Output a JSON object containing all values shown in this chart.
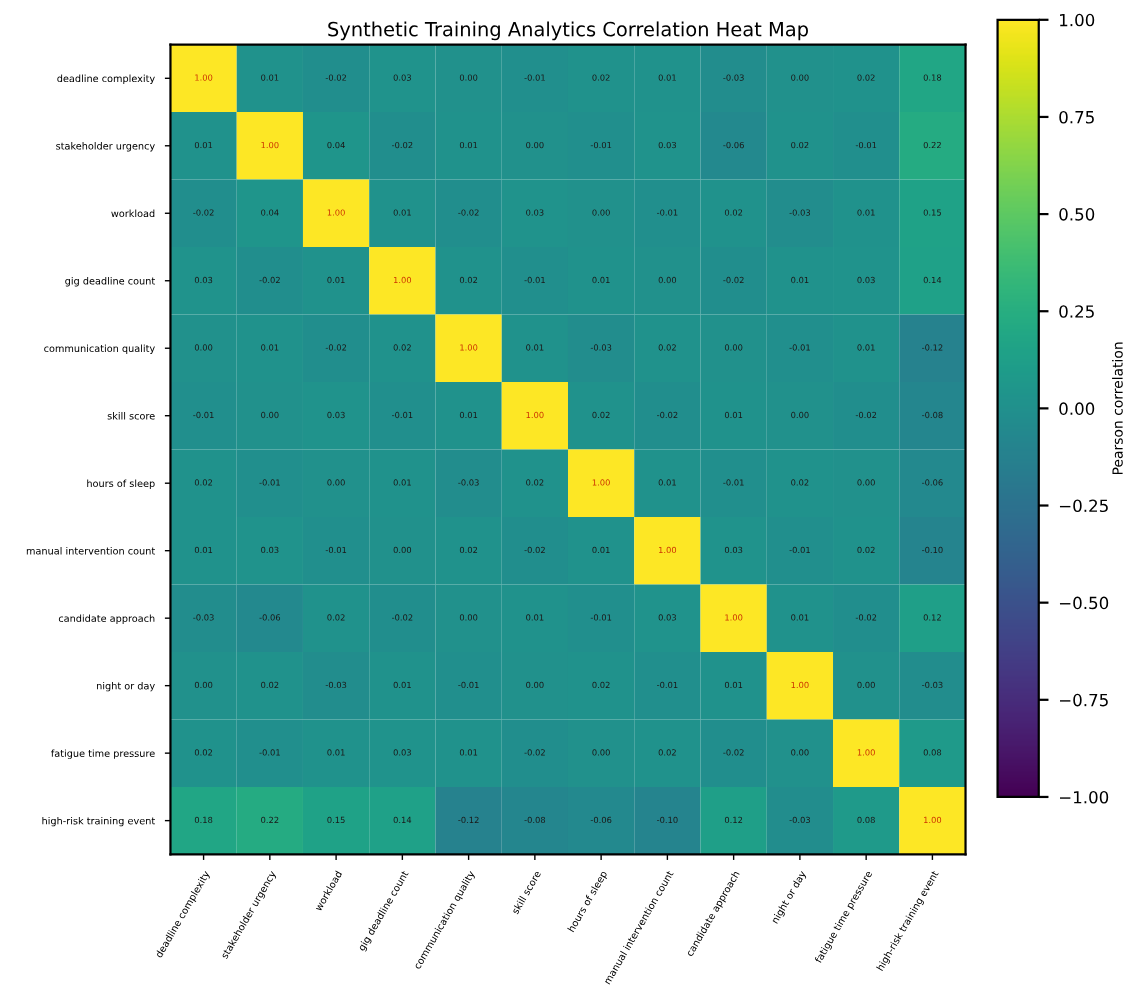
{
  "chart_data": {
    "type": "heatmap",
    "title": "Synthetic Training Analytics Correlation Heat Map",
    "clabel": "Pearson correlation",
    "categories": [
      "deadline complexity",
      "stakeholder urgency",
      "workload",
      "gig deadline count",
      "communication quality",
      "skill score",
      "hours of sleep",
      "manual intervention count",
      "candidate approach",
      "night or day",
      "fatigue time pressure",
      "high-risk training event"
    ],
    "y_categories": [
      "deadline complexity",
      "stakeholder urgency",
      "workload",
      "gig deadline count",
      "communication quality",
      "skill score",
      "hours of sleep",
      "manual intervention count",
      "candidate approach",
      "night or day",
      "fatigue time pressure",
      "high-risk training event"
    ],
    "cells": [
      [
        1.0,
        0.01,
        -0.02,
        0.03,
        0.0,
        -0.01,
        0.02,
        0.01,
        -0.03,
        0.0,
        0.02,
        0.18
      ],
      [
        0.01,
        1.0,
        0.04,
        -0.02,
        0.01,
        0.0,
        -0.01,
        0.03,
        -0.06,
        0.02,
        -0.01,
        0.22
      ],
      [
        -0.02,
        0.04,
        1.0,
        0.01,
        -0.02,
        0.03,
        0.0,
        -0.01,
        0.02,
        -0.03,
        0.01,
        0.15
      ],
      [
        0.03,
        -0.02,
        0.01,
        1.0,
        0.02,
        -0.01,
        0.01,
        0.0,
        -0.02,
        0.01,
        0.03,
        0.14
      ],
      [
        0.0,
        0.01,
        -0.02,
        0.02,
        1.0,
        0.01,
        -0.03,
        0.02,
        0.0,
        -0.01,
        0.01,
        -0.12
      ],
      [
        -0.01,
        0.0,
        0.03,
        -0.01,
        0.01,
        1.0,
        0.02,
        -0.02,
        0.01,
        0.0,
        -0.02,
        -0.08
      ],
      [
        0.02,
        -0.01,
        0.0,
        0.01,
        -0.03,
        0.02,
        1.0,
        0.01,
        -0.01,
        0.02,
        0.0,
        -0.06
      ],
      [
        0.01,
        0.03,
        -0.01,
        0.0,
        0.02,
        -0.02,
        0.01,
        1.0,
        0.03,
        -0.01,
        0.02,
        -0.1
      ],
      [
        -0.03,
        -0.06,
        0.02,
        -0.02,
        0.0,
        0.01,
        -0.01,
        0.03,
        1.0,
        0.01,
        -0.02,
        0.12
      ],
      [
        0.0,
        0.02,
        -0.03,
        0.01,
        -0.01,
        0.0,
        0.02,
        -0.01,
        0.01,
        1.0,
        0.0,
        -0.03
      ],
      [
        0.02,
        -0.01,
        0.01,
        0.03,
        0.01,
        -0.02,
        0.0,
        0.02,
        -0.02,
        0.0,
        1.0,
        0.08
      ],
      [
        0.18,
        0.22,
        0.15,
        0.14,
        -0.12,
        -0.08,
        -0.06,
        -0.1,
        0.12,
        -0.03,
        0.08,
        1.0
      ]
    ],
    "cell_labels": [
      [
        "1.00",
        "0.01",
        "-0.02",
        "0.03",
        "0.00",
        "-0.01",
        "0.02",
        "0.01",
        "-0.03",
        "0.00",
        "0.02",
        "0.18"
      ],
      [
        "0.01",
        "1.00",
        "0.04",
        "-0.02",
        "0.01",
        "0.00",
        "-0.01",
        "0.03",
        "-0.06",
        "0.02",
        "-0.01",
        "0.22"
      ],
      [
        "-0.02",
        "0.04",
        "1.00",
        "0.01",
        "-0.02",
        "0.03",
        "0.00",
        "-0.01",
        "0.02",
        "-0.03",
        "0.01",
        "0.15"
      ],
      [
        "0.03",
        "-0.02",
        "0.01",
        "1.00",
        "0.02",
        "-0.01",
        "0.01",
        "0.00",
        "-0.02",
        "0.01",
        "0.03",
        "0.14"
      ],
      [
        "0.00",
        "0.01",
        "-0.02",
        "0.02",
        "1.00",
        "0.01",
        "-0.03",
        "0.02",
        "0.00",
        "-0.01",
        "0.01",
        "-0.12"
      ],
      [
        "-0.01",
        "0.00",
        "0.03",
        "-0.01",
        "0.01",
        "1.00",
        "0.02",
        "-0.02",
        "0.01",
        "0.00",
        "-0.02",
        "-0.08"
      ],
      [
        "0.02",
        "-0.01",
        "0.00",
        "0.01",
        "-0.03",
        "0.02",
        "1.00",
        "0.01",
        "-0.01",
        "0.02",
        "0.00",
        "-0.06"
      ],
      [
        "0.01",
        "0.03",
        "-0.01",
        "0.00",
        "0.02",
        "-0.02",
        "0.01",
        "1.00",
        "0.03",
        "-0.01",
        "0.02",
        "-0.10"
      ],
      [
        "-0.03",
        "-0.06",
        "0.02",
        "-0.02",
        "0.00",
        "0.01",
        "-0.01",
        "0.03",
        "1.00",
        "0.01",
        "-0.02",
        "0.12"
      ],
      [
        "0.00",
        "0.02",
        "-0.03",
        "0.01",
        "-0.01",
        "0.00",
        "0.02",
        "-0.01",
        "0.01",
        "1.00",
        "0.00",
        "-0.03"
      ],
      [
        "0.02",
        "-0.01",
        "0.01",
        "0.03",
        "0.01",
        "-0.02",
        "0.00",
        "0.02",
        "-0.02",
        "0.00",
        "1.00",
        "0.08"
      ],
      [
        "0.18",
        "0.22",
        "0.15",
        "0.14",
        "-0.12",
        "-0.08",
        "-0.06",
        "-0.10",
        "0.12",
        "-0.03",
        "0.08",
        "1.00"
      ]
    ],
    "clim": [
      -1.0,
      1.0
    ],
    "cticks": [
      {
        "value": -1.0,
        "label": "−1.00"
      },
      {
        "value": -0.75,
        "label": "−0.75"
      },
      {
        "value": -0.5,
        "label": "−0.50"
      },
      {
        "value": -0.25,
        "label": "−0.25"
      },
      {
        "value": 0.0,
        "label": "0.00"
      },
      {
        "value": 0.25,
        "label": "0.25"
      },
      {
        "value": 0.5,
        "label": "0.50"
      },
      {
        "value": 0.75,
        "label": "0.75"
      },
      {
        "value": 1.0,
        "label": "1.00"
      }
    ]
  }
}
